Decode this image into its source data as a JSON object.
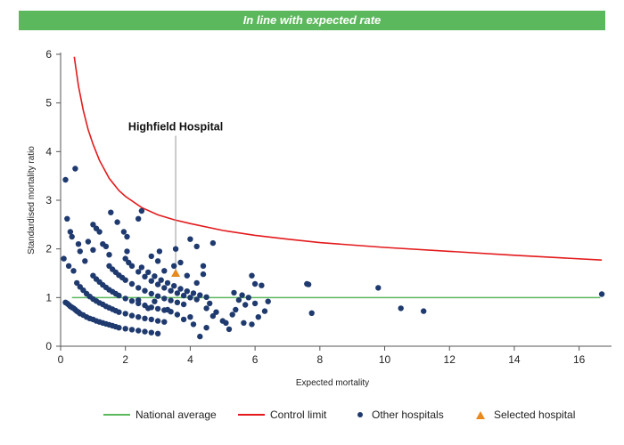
{
  "banner": {
    "title": "In line with expected rate",
    "color": "#5cb85c"
  },
  "chart_data": {
    "type": "scatter",
    "xlabel": "Expected mortality",
    "ylabel": "Standardised mortality ratio",
    "xlim": [
      0,
      17
    ],
    "ylim": [
      0,
      6
    ],
    "xticks": [
      0,
      2,
      4,
      6,
      8,
      10,
      12,
      14,
      16
    ],
    "yticks": [
      0,
      1,
      2,
      3,
      4,
      5,
      6
    ],
    "grid": false,
    "legend_placement": "bottom",
    "national_average": {
      "name": "National average",
      "value": 1,
      "x_range": [
        0.35,
        16.65
      ],
      "color": "#5cb85c"
    },
    "control_limit": {
      "name": "Control limit",
      "color": "#e31a1c",
      "points": [
        [
          0.42,
          5.95
        ],
        [
          0.55,
          5.35
        ],
        [
          0.7,
          4.85
        ],
        [
          0.85,
          4.45
        ],
        [
          1.0,
          4.15
        ],
        [
          1.2,
          3.82
        ],
        [
          1.5,
          3.45
        ],
        [
          1.8,
          3.2
        ],
        [
          2.0,
          3.08
        ],
        [
          2.5,
          2.85
        ],
        [
          3.0,
          2.7
        ],
        [
          3.5,
          2.6
        ],
        [
          4.0,
          2.52
        ],
        [
          5.0,
          2.38
        ],
        [
          6.0,
          2.28
        ],
        [
          7.0,
          2.2
        ],
        [
          8.0,
          2.13
        ],
        [
          10.0,
          2.03
        ],
        [
          12.0,
          1.95
        ],
        [
          14.0,
          1.87
        ],
        [
          16.7,
          1.77
        ]
      ]
    },
    "series": [
      {
        "name": "Other hospitals",
        "color": "#1f3a6e",
        "points": [
          [
            0.15,
            0.9
          ],
          [
            0.2,
            0.88
          ],
          [
            0.25,
            0.85
          ],
          [
            0.3,
            0.82
          ],
          [
            0.35,
            0.8
          ],
          [
            0.4,
            0.78
          ],
          [
            0.45,
            0.75
          ],
          [
            0.5,
            0.72
          ],
          [
            0.55,
            0.7
          ],
          [
            0.6,
            0.67
          ],
          [
            0.7,
            0.64
          ],
          [
            0.8,
            0.6
          ],
          [
            0.9,
            0.57
          ],
          [
            1.0,
            0.55
          ],
          [
            1.1,
            0.52
          ],
          [
            1.2,
            0.5
          ],
          [
            1.3,
            0.48
          ],
          [
            1.4,
            0.46
          ],
          [
            1.5,
            0.44
          ],
          [
            1.6,
            0.42
          ],
          [
            1.7,
            0.4
          ],
          [
            1.8,
            0.38
          ],
          [
            2.0,
            0.36
          ],
          [
            2.2,
            0.34
          ],
          [
            2.4,
            0.32
          ],
          [
            2.6,
            0.3
          ],
          [
            2.8,
            0.28
          ],
          [
            3.0,
            0.26
          ],
          [
            0.5,
            1.3
          ],
          [
            0.6,
            1.22
          ],
          [
            0.7,
            1.15
          ],
          [
            0.8,
            1.08
          ],
          [
            0.9,
            1.02
          ],
          [
            1.0,
            0.97
          ],
          [
            1.1,
            0.93
          ],
          [
            1.2,
            0.89
          ],
          [
            1.3,
            0.86
          ],
          [
            1.4,
            0.82
          ],
          [
            1.5,
            0.79
          ],
          [
            1.6,
            0.76
          ],
          [
            1.7,
            0.73
          ],
          [
            1.8,
            0.7
          ],
          [
            2.0,
            0.67
          ],
          [
            2.2,
            0.63
          ],
          [
            2.4,
            0.6
          ],
          [
            2.6,
            0.57
          ],
          [
            2.8,
            0.55
          ],
          [
            3.0,
            0.52
          ],
          [
            3.2,
            0.5
          ],
          [
            1.0,
            1.45
          ],
          [
            1.1,
            1.38
          ],
          [
            1.2,
            1.32
          ],
          [
            1.3,
            1.26
          ],
          [
            1.4,
            1.21
          ],
          [
            1.5,
            1.16
          ],
          [
            1.6,
            1.12
          ],
          [
            1.7,
            1.08
          ],
          [
            1.8,
            1.04
          ],
          [
            2.0,
            0.98
          ],
          [
            2.2,
            0.93
          ],
          [
            2.4,
            0.88
          ],
          [
            2.6,
            0.84
          ],
          [
            2.8,
            0.8
          ],
          [
            3.0,
            0.77
          ],
          [
            3.2,
            0.74
          ],
          [
            3.4,
            0.71
          ],
          [
            1.5,
            1.65
          ],
          [
            1.6,
            1.58
          ],
          [
            1.7,
            1.52
          ],
          [
            1.8,
            1.46
          ],
          [
            1.9,
            1.41
          ],
          [
            2.0,
            1.36
          ],
          [
            2.2,
            1.28
          ],
          [
            2.4,
            1.2
          ],
          [
            2.6,
            1.14
          ],
          [
            2.8,
            1.08
          ],
          [
            3.0,
            1.03
          ],
          [
            3.2,
            0.98
          ],
          [
            3.4,
            0.94
          ],
          [
            3.6,
            0.9
          ],
          [
            3.8,
            0.86
          ],
          [
            2.0,
            1.8
          ],
          [
            2.1,
            1.72
          ],
          [
            2.2,
            1.65
          ],
          [
            2.4,
            1.53
          ],
          [
            2.6,
            1.43
          ],
          [
            2.8,
            1.34
          ],
          [
            3.0,
            1.27
          ],
          [
            3.2,
            1.2
          ],
          [
            3.4,
            1.14
          ],
          [
            3.6,
            1.09
          ],
          [
            3.8,
            1.04
          ],
          [
            4.0,
            1.0
          ],
          [
            4.2,
            0.96
          ],
          [
            2.5,
            1.62
          ],
          [
            2.7,
            1.52
          ],
          [
            2.9,
            1.44
          ],
          [
            3.1,
            1.36
          ],
          [
            3.3,
            1.3
          ],
          [
            3.5,
            1.24
          ],
          [
            3.7,
            1.18
          ],
          [
            3.9,
            1.13
          ],
          [
            4.1,
            1.09
          ],
          [
            4.3,
            1.05
          ],
          [
            4.5,
            1.01
          ],
          [
            0.1,
            1.8
          ],
          [
            0.15,
            3.42
          ],
          [
            0.2,
            2.62
          ],
          [
            0.25,
            1.65
          ],
          [
            0.3,
            2.35
          ],
          [
            0.35,
            2.25
          ],
          [
            0.4,
            1.55
          ],
          [
            0.45,
            3.65
          ],
          [
            0.55,
            2.1
          ],
          [
            0.6,
            1.95
          ],
          [
            0.75,
            1.75
          ],
          [
            0.85,
            2.15
          ],
          [
            1.0,
            2.5
          ],
          [
            1.1,
            2.42
          ],
          [
            1.2,
            2.35
          ],
          [
            1.3,
            2.1
          ],
          [
            1.0,
            1.98
          ],
          [
            1.4,
            2.05
          ],
          [
            1.5,
            1.88
          ],
          [
            1.55,
            2.75
          ],
          [
            1.75,
            2.55
          ],
          [
            1.95,
            2.35
          ],
          [
            2.05,
            2.25
          ],
          [
            2.05,
            1.95
          ],
          [
            2.4,
            2.62
          ],
          [
            2.5,
            2.78
          ],
          [
            2.8,
            1.85
          ],
          [
            3.0,
            1.75
          ],
          [
            3.05,
            1.95
          ],
          [
            3.2,
            1.55
          ],
          [
            3.5,
            1.65
          ],
          [
            3.55,
            2.0
          ],
          [
            3.7,
            1.72
          ],
          [
            3.9,
            1.45
          ],
          [
            4.0,
            2.2
          ],
          [
            4.2,
            2.05
          ],
          [
            4.4,
            1.65
          ],
          [
            4.7,
            2.12
          ],
          [
            2.4,
            0.95
          ],
          [
            2.7,
            0.78
          ],
          [
            2.9,
            0.92
          ],
          [
            3.3,
            0.75
          ],
          [
            3.6,
            0.65
          ],
          [
            3.8,
            0.55
          ],
          [
            4.0,
            0.6
          ],
          [
            4.1,
            0.45
          ],
          [
            4.3,
            0.2
          ],
          [
            4.5,
            0.38
          ],
          [
            4.6,
            0.88
          ],
          [
            4.7,
            0.62
          ],
          [
            4.8,
            0.7
          ],
          [
            5.0,
            0.52
          ],
          [
            5.1,
            0.48
          ],
          [
            5.2,
            0.35
          ],
          [
            5.3,
            0.65
          ],
          [
            5.35,
            1.1
          ],
          [
            5.4,
            0.75
          ],
          [
            5.5,
            0.95
          ],
          [
            5.6,
            1.05
          ],
          [
            5.7,
            0.85
          ],
          [
            5.8,
            1.0
          ],
          [
            5.9,
            1.45
          ],
          [
            6.0,
            1.28
          ],
          [
            6.0,
            0.88
          ],
          [
            6.1,
            0.6
          ],
          [
            6.2,
            1.25
          ],
          [
            6.3,
            0.72
          ],
          [
            6.4,
            0.92
          ],
          [
            5.65,
            0.48
          ],
          [
            5.9,
            0.45
          ],
          [
            4.5,
            0.78
          ],
          [
            4.2,
            1.3
          ],
          [
            4.4,
            1.48
          ],
          [
            7.6,
            1.28
          ],
          [
            7.65,
            1.27
          ],
          [
            7.75,
            0.68
          ],
          [
            9.8,
            1.2
          ],
          [
            10.5,
            0.78
          ],
          [
            11.2,
            0.72
          ],
          [
            16.7,
            1.07
          ]
        ]
      },
      {
        "name": "Selected hospital",
        "color": "#e8891c",
        "points": [
          [
            3.55,
            1.5
          ]
        ]
      }
    ],
    "annotations": [
      {
        "text": "Highfield Hospital",
        "x": 3.55,
        "y": 4.4
      }
    ]
  }
}
